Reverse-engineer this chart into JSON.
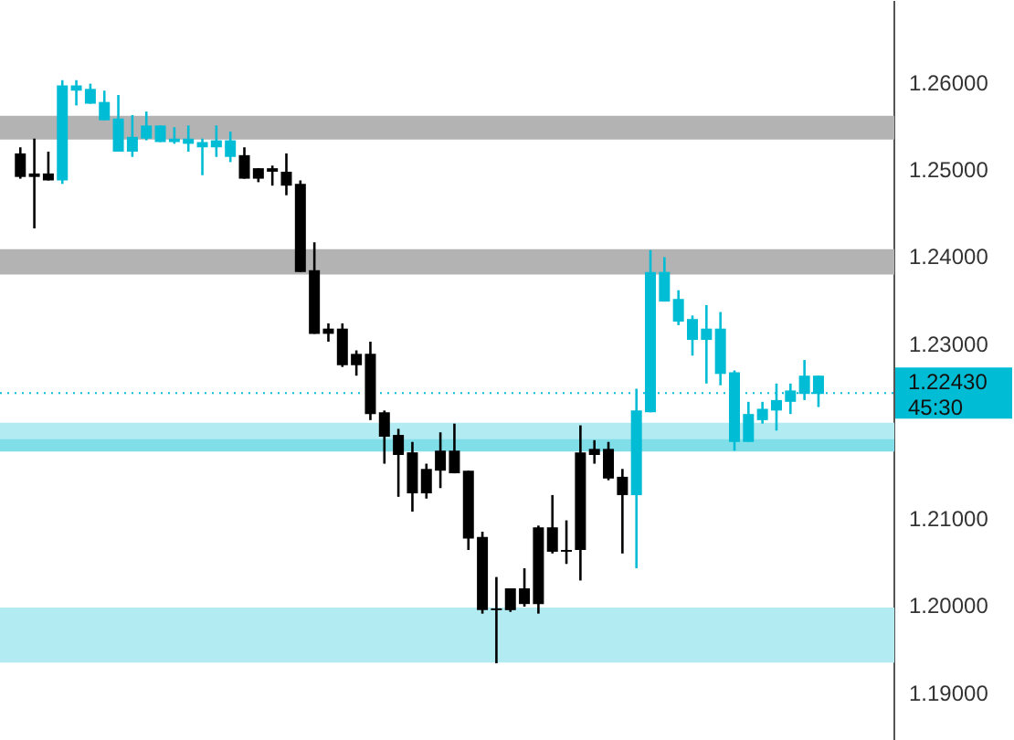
{
  "chart_data": {
    "type": "candlestick",
    "categories": [
      null,
      null,
      null,
      null,
      null,
      null,
      null,
      null,
      null,
      null,
      null,
      null,
      null,
      null,
      null,
      null,
      null,
      null,
      null,
      null,
      null,
      null,
      null,
      null,
      null,
      null,
      null,
      null,
      null,
      null,
      null,
      null,
      null,
      null,
      null,
      null,
      null,
      null,
      null,
      null,
      null,
      null,
      null,
      null,
      null,
      null,
      null,
      null,
      null,
      null,
      null,
      null,
      null,
      null,
      null,
      null,
      null,
      null
    ],
    "ohlc": [
      [
        1.2518,
        1.2525,
        1.2489,
        1.2491
      ],
      [
        1.2495,
        1.2535,
        1.2432,
        1.2491
      ],
      [
        1.2495,
        1.252,
        1.2487,
        1.2487
      ],
      [
        1.2487,
        1.2602,
        1.2483,
        1.2596
      ],
      [
        1.259,
        1.2602,
        1.2573,
        1.2596
      ],
      [
        1.2575,
        1.2598,
        1.2575,
        1.2592
      ],
      [
        1.2556,
        1.259,
        1.2556,
        1.2577
      ],
      [
        1.252,
        1.2585,
        1.252,
        1.2558
      ],
      [
        1.252,
        1.2562,
        1.2514,
        1.2537
      ],
      [
        1.2535,
        1.2566,
        1.2533,
        1.255
      ],
      [
        1.2531,
        1.255,
        1.2531,
        1.255
      ],
      [
        1.2531,
        1.2548,
        1.2529,
        1.2535
      ],
      [
        1.2529,
        1.255,
        1.252,
        1.2535
      ],
      [
        1.2525,
        1.2535,
        1.2493,
        1.2531
      ],
      [
        1.2525,
        1.255,
        1.2514,
        1.2533
      ],
      [
        1.2514,
        1.2543,
        1.2508,
        1.2533
      ],
      [
        1.2516,
        1.2525,
        1.2489,
        1.2489
      ],
      [
        1.2501,
        1.2501,
        1.2485,
        1.2489
      ],
      [
        1.2501,
        1.2504,
        1.2481,
        1.2497
      ],
      [
        1.2497,
        1.2518,
        1.247,
        1.2481
      ],
      [
        1.2483,
        1.2487,
        1.2382,
        1.2382
      ],
      [
        1.2384,
        1.2416,
        1.2311,
        1.2311
      ],
      [
        1.2317,
        1.2323,
        1.2302,
        1.2311
      ],
      [
        1.2317,
        1.2323,
        1.2273,
        1.2275
      ],
      [
        1.2288,
        1.2292,
        1.2263,
        1.2275
      ],
      [
        1.2288,
        1.2302,
        1.2212,
        1.2219
      ],
      [
        1.2221,
        1.2223,
        1.2162,
        1.2193
      ],
      [
        1.2195,
        1.2202,
        1.2124,
        1.2172
      ],
      [
        1.2175,
        1.2187,
        1.2107,
        1.2128
      ],
      [
        1.2156,
        1.2162,
        1.2122,
        1.2128
      ],
      [
        1.2177,
        1.2198,
        1.2134,
        1.2154
      ],
      [
        1.2177,
        1.2208,
        1.2151,
        1.2151
      ],
      [
        1.2154,
        1.2154,
        1.2063,
        1.2076
      ],
      [
        1.2078,
        1.2084,
        1.199,
        1.1994
      ],
      [
        1.1996,
        1.2032,
        1.1933,
        1.1994
      ],
      [
        1.2019,
        1.2019,
        1.1992,
        1.1994
      ],
      [
        1.2019,
        1.2042,
        1.1998,
        1.2001
      ],
      [
        1.2089,
        1.2091,
        1.199,
        1.2001
      ],
      [
        1.2089,
        1.2126,
        1.2059,
        1.2061
      ],
      [
        1.2063,
        1.2097,
        1.2047,
        1.2061
      ],
      [
        1.2175,
        1.2206,
        1.2028,
        1.2063
      ],
      [
        1.2179,
        1.2189,
        1.2162,
        1.2172
      ],
      [
        1.2179,
        1.2187,
        1.2143,
        1.2145
      ],
      [
        1.2147,
        1.2156,
        1.2059,
        1.2126
      ],
      [
        1.2126,
        1.2248,
        1.2042,
        1.2223
      ],
      [
        1.2221,
        1.2407,
        1.2221,
        1.2382
      ],
      [
        1.2348,
        1.2399,
        1.2348,
        1.2382
      ],
      [
        1.2325,
        1.2361,
        1.2321,
        1.2351
      ],
      [
        1.2304,
        1.2332,
        1.2286,
        1.2328
      ],
      [
        1.2304,
        1.2344,
        1.2254,
        1.2317
      ],
      [
        1.2265,
        1.2336,
        1.2252,
        1.2317
      ],
      [
        1.2187,
        1.2269,
        1.2177,
        1.2267
      ],
      [
        1.2187,
        1.2233,
        1.2187,
        1.2219
      ],
      [
        1.2212,
        1.2233,
        1.2208,
        1.2225
      ],
      [
        1.2223,
        1.2254,
        1.22,
        1.2235
      ],
      [
        1.2233,
        1.2254,
        1.2219,
        1.2246
      ],
      [
        1.2242,
        1.2281,
        1.2235,
        1.2263
      ],
      [
        1.2242,
        1.2263,
        1.2227,
        1.2263
      ]
    ],
    "colors": [
      "#000000",
      "#000000",
      "#000000",
      "#00bcd4",
      "#00bcd4",
      "#00bcd4",
      "#00bcd4",
      "#00bcd4",
      "#00bcd4",
      "#00bcd4",
      "#00bcd4",
      "#00bcd4",
      "#00bcd4",
      "#00bcd4",
      "#00bcd4",
      "#00bcd4",
      "#000000",
      "#000000",
      "#000000",
      "#000000",
      "#000000",
      "#000000",
      "#000000",
      "#000000",
      "#000000",
      "#000000",
      "#000000",
      "#000000",
      "#000000",
      "#000000",
      "#000000",
      "#000000",
      "#000000",
      "#000000",
      "#000000",
      "#000000",
      "#000000",
      "#000000",
      "#000000",
      "#000000",
      "#000000",
      "#000000",
      "#000000",
      "#000000",
      "#00bcd4",
      "#00bcd4",
      "#00bcd4",
      "#00bcd4",
      "#00bcd4",
      "#00bcd4",
      "#00bcd4",
      "#00bcd4",
      "#00bcd4",
      "#00bcd4",
      "#00bcd4",
      "#00bcd4",
      "#00bcd4",
      "#00bcd4"
    ],
    "ylim": [
      1.1845,
      1.2694
    ],
    "yticks": [
      {
        "value": 1.19,
        "label": "1.19000"
      },
      {
        "value": 1.2,
        "label": "1.20000"
      },
      {
        "value": 1.21,
        "label": "1.21000"
      },
      {
        "value": 1.23,
        "label": "1.23000"
      },
      {
        "value": 1.24,
        "label": "1.24000"
      },
      {
        "value": 1.25,
        "label": "1.25000"
      },
      {
        "value": 1.26,
        "label": "1.26000"
      }
    ],
    "tick_labels": "y",
    "grid": false,
    "bands": [
      {
        "axis": "y",
        "from": 1.2535,
        "to": 1.256,
        "color": "#b3b3b3"
      },
      {
        "axis": "y",
        "from": 1.238,
        "to": 1.2407,
        "color": "#b3b3b3"
      },
      {
        "axis": "y",
        "from": 1.2179,
        "to": 1.2208,
        "color": "#b2ebf2"
      },
      {
        "axis": "y",
        "from": 1.1935,
        "to": 1.1996,
        "color": "#b2ebf2"
      },
      {
        "axis": "y",
        "from": 1.2177,
        "to": 1.2189,
        "color": "#80dee9"
      }
    ],
    "ref_lines": [
      {
        "axis": "y",
        "value": 1.2243,
        "label": "1.22430",
        "color": "#00bcd4",
        "line_style": "dotted"
      }
    ],
    "annotations": [
      "45:30"
    ]
  }
}
